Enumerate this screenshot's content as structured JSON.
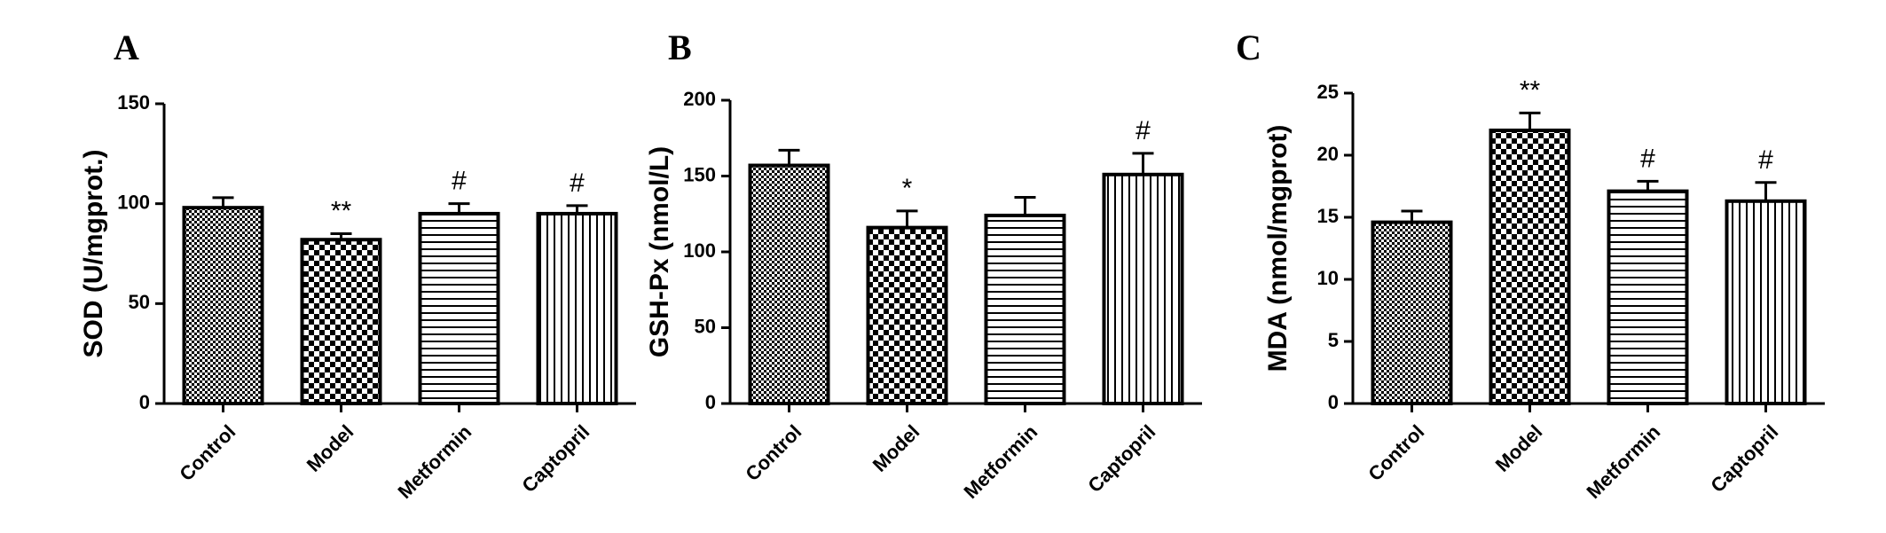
{
  "chart_data": [
    {
      "type": "bar",
      "panel": "A",
      "ylabel": "SOD (U/mgprot.)",
      "ylim": [
        0,
        150
      ],
      "yticks": [
        0,
        50,
        100,
        150
      ],
      "categories": [
        "Control",
        "Model",
        "Metformin",
        "Captopril"
      ],
      "values": [
        98,
        82,
        95,
        95
      ],
      "errors": [
        5,
        3,
        5,
        4
      ],
      "annotations": [
        "",
        "**",
        "#",
        "#"
      ],
      "patterns": [
        "fine-checker",
        "coarse-checker",
        "horizontal-lines",
        "vertical-lines"
      ]
    },
    {
      "type": "bar",
      "panel": "B",
      "ylabel": "GSH-Px (nmol/L)",
      "ylim": [
        0,
        200
      ],
      "yticks": [
        0,
        50,
        100,
        150,
        200
      ],
      "categories": [
        "Control",
        "Model",
        "Metformin",
        "Captopril"
      ],
      "values": [
        157,
        116,
        124,
        151
      ],
      "errors": [
        10,
        11,
        12,
        14
      ],
      "annotations": [
        "",
        "*",
        "",
        "#"
      ],
      "patterns": [
        "fine-checker",
        "coarse-checker",
        "horizontal-lines",
        "vertical-lines"
      ]
    },
    {
      "type": "bar",
      "panel": "C",
      "ylabel": "MDA (nmol/mgprot)",
      "ylim": [
        0,
        25
      ],
      "yticks": [
        0,
        5,
        10,
        15,
        20,
        25
      ],
      "categories": [
        "Control",
        "Model",
        "Metformin",
        "Captopril"
      ],
      "values": [
        14.6,
        22.0,
        17.1,
        16.3
      ],
      "errors": [
        0.9,
        1.4,
        0.8,
        1.5
      ],
      "annotations": [
        "",
        "**",
        "#",
        "#"
      ],
      "patterns": [
        "fine-checker",
        "coarse-checker",
        "horizontal-lines",
        "vertical-lines"
      ]
    }
  ]
}
